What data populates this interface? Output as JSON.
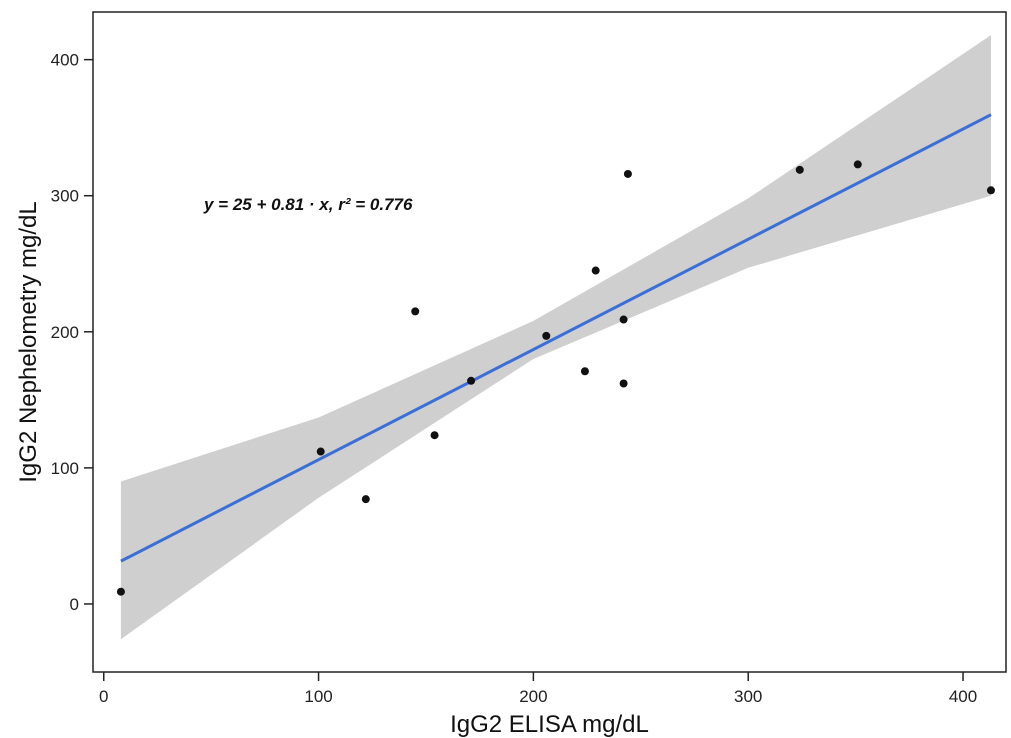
{
  "chart_data": {
    "type": "scatter",
    "title": "",
    "xlabel": "IgG2 ELISA mg/dL",
    "ylabel": "IgG2 Nephelometry mg/dL",
    "xlim": [
      -5,
      420
    ],
    "ylim": [
      -50,
      435
    ],
    "x_ticks": [
      0,
      100,
      200,
      300,
      400
    ],
    "y_ticks": [
      0,
      100,
      200,
      300,
      400
    ],
    "grid": false,
    "annotation": "y = 25 + 0.81 · x,  r² = 0.776",
    "points": [
      {
        "x": 8,
        "y": 9
      },
      {
        "x": 101,
        "y": 112
      },
      {
        "x": 122,
        "y": 77
      },
      {
        "x": 145,
        "y": 215
      },
      {
        "x": 154,
        "y": 124
      },
      {
        "x": 171,
        "y": 164
      },
      {
        "x": 206,
        "y": 197
      },
      {
        "x": 224,
        "y": 171
      },
      {
        "x": 229,
        "y": 245
      },
      {
        "x": 242,
        "y": 209
      },
      {
        "x": 242,
        "y": 162
      },
      {
        "x": 244,
        "y": 316
      },
      {
        "x": 324,
        "y": 319
      },
      {
        "x": 351,
        "y": 323
      },
      {
        "x": 413,
        "y": 304
      }
    ],
    "regression": {
      "intercept": 25,
      "slope": 0.81,
      "r2": 0.776,
      "x_range": [
        8,
        413
      ]
    },
    "confidence_band": {
      "x": [
        8,
        100,
        200,
        300,
        413
      ],
      "upper": [
        90,
        137,
        208,
        298,
        418
      ],
      "lower": [
        -26,
        78,
        180,
        247,
        300
      ]
    },
    "colors": {
      "line": "#3a6fd8",
      "band": "#cfcfcf",
      "points": "#111111",
      "axis": "#222222"
    }
  }
}
